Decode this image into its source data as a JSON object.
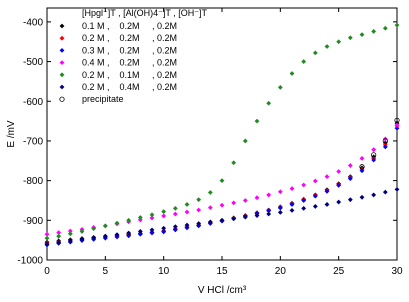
{
  "chart_data": {
    "type": "scatter",
    "x_label": "V HCl /cm³",
    "y_label": "E /mV",
    "legend_title": "[Hpgl⁻]T , [Al(OH)4⁻]T , [OH⁻]T",
    "legend": "upper-left",
    "x": [
      0,
      1,
      2,
      3,
      4,
      5,
      6,
      7,
      8,
      9,
      10,
      11,
      12,
      13,
      14,
      15,
      16,
      17,
      18,
      19,
      20,
      21,
      22,
      23,
      24,
      25,
      26,
      27,
      28,
      29,
      30
    ],
    "xlim": [
      0,
      30
    ],
    "xticks": [
      0,
      5,
      10,
      15,
      20,
      25,
      30
    ],
    "ylim": [
      -1000,
      -365
    ],
    "yticks": [
      -1000,
      -900,
      -800,
      -700,
      -600,
      -500,
      -400
    ],
    "series": [
      {
        "name": "0.1 M ,    0.2M     , 0.2M",
        "color": "#000000",
        "marker": "diamond",
        "values": [
          -955,
          -952,
          -949,
          -946,
          -943,
          -940,
          -938,
          -935,
          -933,
          -930,
          -927,
          -922,
          -917,
          -912,
          -906,
          -900,
          -894,
          -888,
          -881,
          -874,
          -866,
          -857,
          -847,
          -836,
          -823,
          -808,
          -790,
          -768,
          -740,
          -705,
          -655
        ]
      },
      {
        "name": "0.2 M ,    0.2M     , 0.2M",
        "color": "#ff0000",
        "marker": "diamond",
        "values": [
          -958,
          -955,
          -952,
          -949,
          -946,
          -943,
          -940,
          -937,
          -934,
          -931,
          -928,
          -923,
          -918,
          -913,
          -907,
          -901,
          -895,
          -889,
          -882,
          -875,
          -867,
          -858,
          -848,
          -837,
          -825,
          -810,
          -792,
          -771,
          -744,
          -710,
          -662
        ]
      },
      {
        "name": "0.3 M ,    0.2M     , 0.2M",
        "color": "#0000ff",
        "marker": "diamond",
        "values": [
          -962,
          -958,
          -955,
          -951,
          -948,
          -945,
          -942,
          -939,
          -935,
          -932,
          -929,
          -924,
          -919,
          -914,
          -908,
          -902,
          -896,
          -890,
          -883,
          -876,
          -869,
          -860,
          -850,
          -839,
          -827,
          -812,
          -795,
          -775,
          -748,
          -715,
          -668
        ]
      },
      {
        "name": "0.4 M ,    0.2M     , 0.2M",
        "color": "#ff00ff",
        "marker": "diamond",
        "values": [
          -935,
          -931,
          -927,
          -923,
          -918,
          -914,
          -909,
          -904,
          -899,
          -894,
          -889,
          -884,
          -879,
          -874,
          -868,
          -862,
          -856,
          -850,
          -843,
          -836,
          -828,
          -820,
          -811,
          -801,
          -790,
          -777,
          -762,
          -744,
          -722,
          -695,
          -660
        ]
      },
      {
        "name": "0.2 M ,    0.1M     , 0.2M",
        "color": "#228b22",
        "marker": "diamond",
        "values": [
          -945,
          -940,
          -934,
          -928,
          -921,
          -914,
          -907,
          -900,
          -893,
          -886,
          -878,
          -870,
          -860,
          -848,
          -830,
          -800,
          -755,
          -700,
          -650,
          -605,
          -565,
          -530,
          -500,
          -478,
          -462,
          -450,
          -440,
          -432,
          -424,
          -416,
          -408
        ]
      },
      {
        "name": "0.2 M ,    0.4M     , 0.2M",
        "color": "#000080",
        "marker": "diamond",
        "values": [
          -960,
          -956,
          -952,
          -948,
          -944,
          -940,
          -936,
          -932,
          -928,
          -924,
          -920,
          -916,
          -912,
          -908,
          -904,
          -900,
          -896,
          -892,
          -888,
          -884,
          -880,
          -875,
          -870,
          -865,
          -860,
          -854,
          -848,
          -842,
          -836,
          -829,
          -822
        ]
      },
      {
        "name": "precipitate",
        "color": "#000000",
        "marker": "circle-open",
        "values": [
          null,
          null,
          null,
          null,
          null,
          null,
          null,
          null,
          null,
          null,
          null,
          null,
          null,
          null,
          null,
          null,
          null,
          null,
          null,
          null,
          null,
          null,
          null,
          null,
          null,
          null,
          null,
          -765,
          -735,
          -700,
          -648
        ]
      }
    ]
  }
}
